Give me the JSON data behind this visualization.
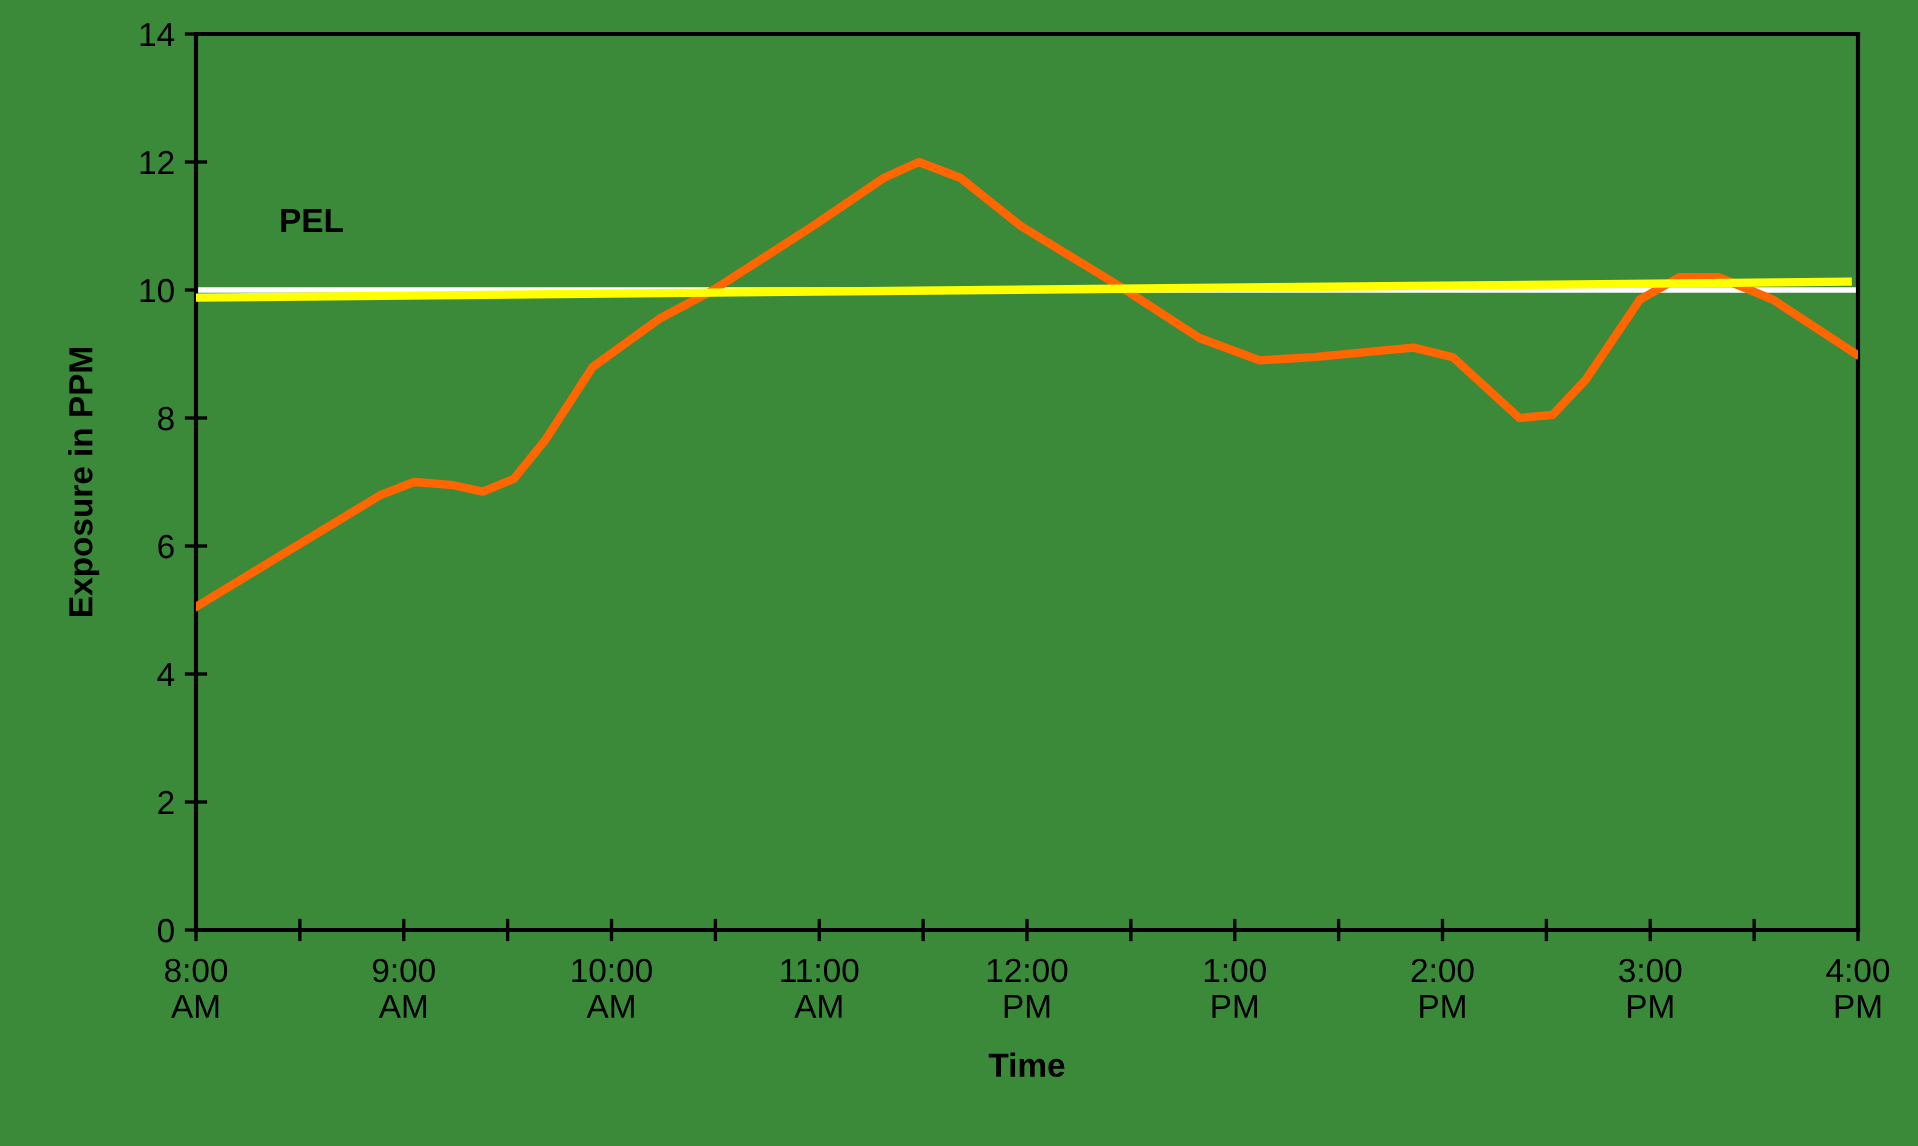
{
  "chart_data": {
    "type": "line",
    "xlabel": "Time",
    "ylabel": "Exposure in PPM",
    "xlim": [
      8,
      16
    ],
    "ylim": [
      0,
      14
    ],
    "yticks": [
      0,
      2,
      4,
      6,
      8,
      10,
      12,
      14
    ],
    "xticks": [
      {
        "value": 8,
        "label": "8:00\nAM"
      },
      {
        "value": 8.5,
        "label": null
      },
      {
        "value": 9,
        "label": "9:00\nAM"
      },
      {
        "value": 9.5,
        "label": null
      },
      {
        "value": 10,
        "label": "10:00\nAM"
      },
      {
        "value": 10.5,
        "label": null
      },
      {
        "value": 11,
        "label": "11:00\nAM"
      },
      {
        "value": 11.5,
        "label": null
      },
      {
        "value": 12,
        "label": "12:00\nPM"
      },
      {
        "value": 12.5,
        "label": null
      },
      {
        "value": 13,
        "label": "1:00\nPM"
      },
      {
        "value": 13.5,
        "label": null
      },
      {
        "value": 14,
        "label": "2:00\nPM"
      },
      {
        "value": 14.5,
        "label": null
      },
      {
        "value": 15,
        "label": "3:00\nPM"
      },
      {
        "value": 15.5,
        "label": null
      },
      {
        "value": 16,
        "label": "4:00\nPM"
      }
    ],
    "grid": false,
    "marker": "none",
    "line_style": "solid",
    "series": [
      {
        "color": "#ff6600",
        "x": [
          8.0,
          8.89,
          9.05,
          9.24,
          9.38,
          9.53,
          9.68,
          9.91,
          10.23,
          10.49,
          10.97,
          11.31,
          11.48,
          11.68,
          11.97,
          12.45,
          12.83,
          13.12,
          13.38,
          13.86,
          14.05,
          14.37,
          14.53,
          14.69,
          14.95,
          15.14,
          15.33,
          15.59,
          15.99
        ],
        "values": [
          5.05,
          6.8,
          7.0,
          6.95,
          6.85,
          7.05,
          7.65,
          8.8,
          9.55,
          10.0,
          11.0,
          11.75,
          12.0,
          11.75,
          11.0,
          10.05,
          9.25,
          8.9,
          8.95,
          9.1,
          8.95,
          8.0,
          8.05,
          8.6,
          9.85,
          10.2,
          10.2,
          9.85,
          9.0
        ]
      },
      {
        "type": "line",
        "color": "#ffff00",
        "x": [
          8.0,
          15.95
        ],
        "values": [
          9.88,
          10.13
        ]
      }
    ],
    "ref_lines": [
      {
        "axis": "y",
        "value": 10,
        "label": "PEL",
        "color": "#ffffff",
        "line_style": "solid"
      }
    ]
  }
}
